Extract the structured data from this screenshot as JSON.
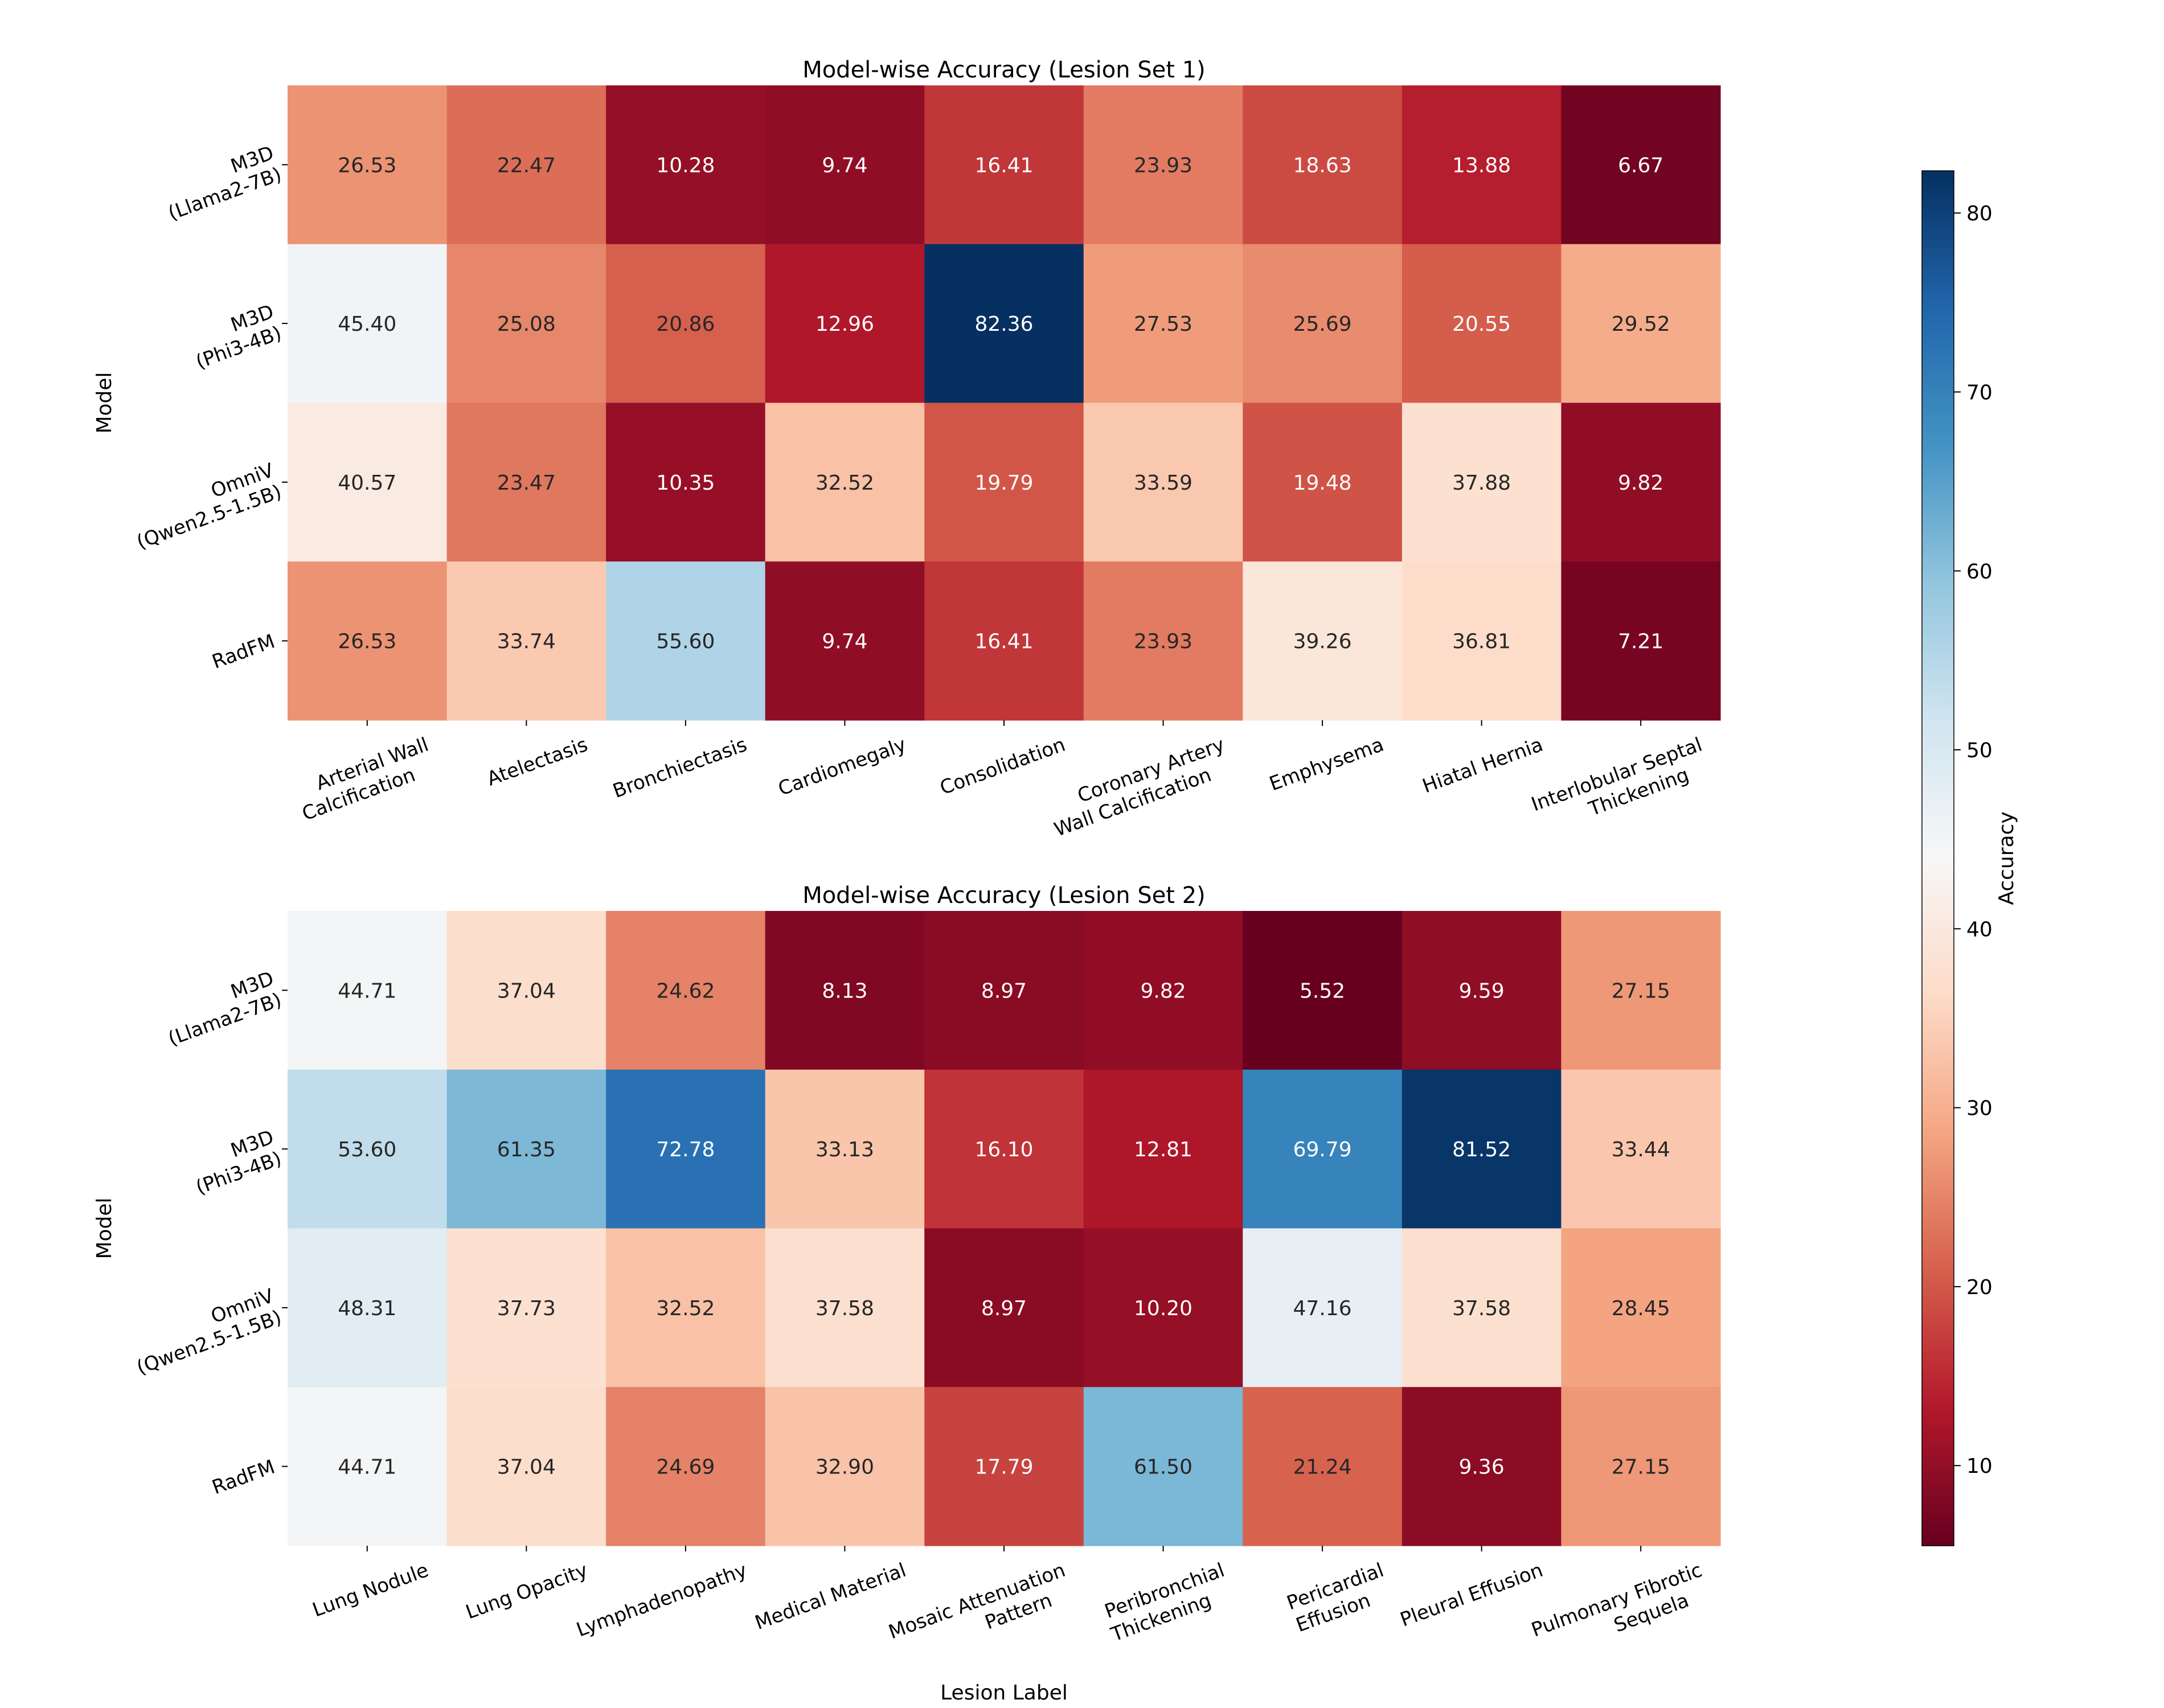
{
  "chart_data": [
    {
      "type": "heatmap",
      "title": "Model-wise Accuracy (Lesion Set 1)",
      "xlabel": "",
      "ylabel": "Model",
      "rows": [
        [
          "M3D",
          "(Llama2-7B)"
        ],
        [
          "M3D",
          "(Phi3-4B)"
        ],
        [
          "OmniV",
          "(Qwen2.5-1.5B)"
        ],
        [
          "RadFM"
        ]
      ],
      "columns": [
        [
          "Arterial Wall",
          "Calcification"
        ],
        [
          "Atelectasis"
        ],
        [
          "Bronchiectasis"
        ],
        [
          "Cardiomegaly"
        ],
        [
          "Consolidation"
        ],
        [
          "Coronary Artery",
          "Wall Calcification"
        ],
        [
          "Emphysema"
        ],
        [
          "Hiatal Hernia"
        ],
        [
          "Interlobular Septal",
          "Thickening"
        ]
      ],
      "values": [
        [
          26.53,
          22.47,
          10.28,
          9.74,
          16.41,
          23.93,
          18.63,
          13.88,
          6.67
        ],
        [
          45.4,
          25.08,
          20.86,
          12.96,
          82.36,
          27.53,
          25.69,
          20.55,
          29.52
        ],
        [
          40.57,
          23.47,
          10.35,
          32.52,
          19.79,
          33.59,
          19.48,
          37.88,
          9.82
        ],
        [
          26.53,
          33.74,
          55.6,
          9.74,
          16.41,
          23.93,
          39.26,
          36.81,
          7.21
        ]
      ]
    },
    {
      "type": "heatmap",
      "title": "Model-wise Accuracy (Lesion Set 2)",
      "xlabel": "Lesion Label",
      "ylabel": "Model",
      "rows": [
        [
          "M3D",
          "(Llama2-7B)"
        ],
        [
          "M3D",
          "(Phi3-4B)"
        ],
        [
          "OmniV",
          "(Qwen2.5-1.5B)"
        ],
        [
          "RadFM"
        ]
      ],
      "columns": [
        [
          "Lung Nodule"
        ],
        [
          "Lung Opacity"
        ],
        [
          "Lymphadenopathy"
        ],
        [
          "Medical Material"
        ],
        [
          "Mosaic Attenuation",
          "Pattern"
        ],
        [
          "Peribronchial",
          "Thickening"
        ],
        [
          "Pericardial",
          "Effusion"
        ],
        [
          "Pleural Effusion"
        ],
        [
          "Pulmonary Fibrotic",
          "Sequela"
        ]
      ],
      "values": [
        [
          44.71,
          37.04,
          24.62,
          8.13,
          8.97,
          9.82,
          5.52,
          9.59,
          27.15
        ],
        [
          53.6,
          61.35,
          72.78,
          33.13,
          16.1,
          12.81,
          69.79,
          81.52,
          33.44
        ],
        [
          48.31,
          37.73,
          32.52,
          37.58,
          8.97,
          10.2,
          47.16,
          37.58,
          28.45
        ],
        [
          44.71,
          37.04,
          24.69,
          32.9,
          17.79,
          61.5,
          21.24,
          9.36,
          27.15
        ]
      ]
    }
  ],
  "colorbar": {
    "label": "Accuracy",
    "colormap": "RdBu",
    "vmin": 5.52,
    "vmax": 82.36,
    "ticks": [
      10,
      20,
      30,
      40,
      50,
      60,
      70,
      80
    ]
  }
}
